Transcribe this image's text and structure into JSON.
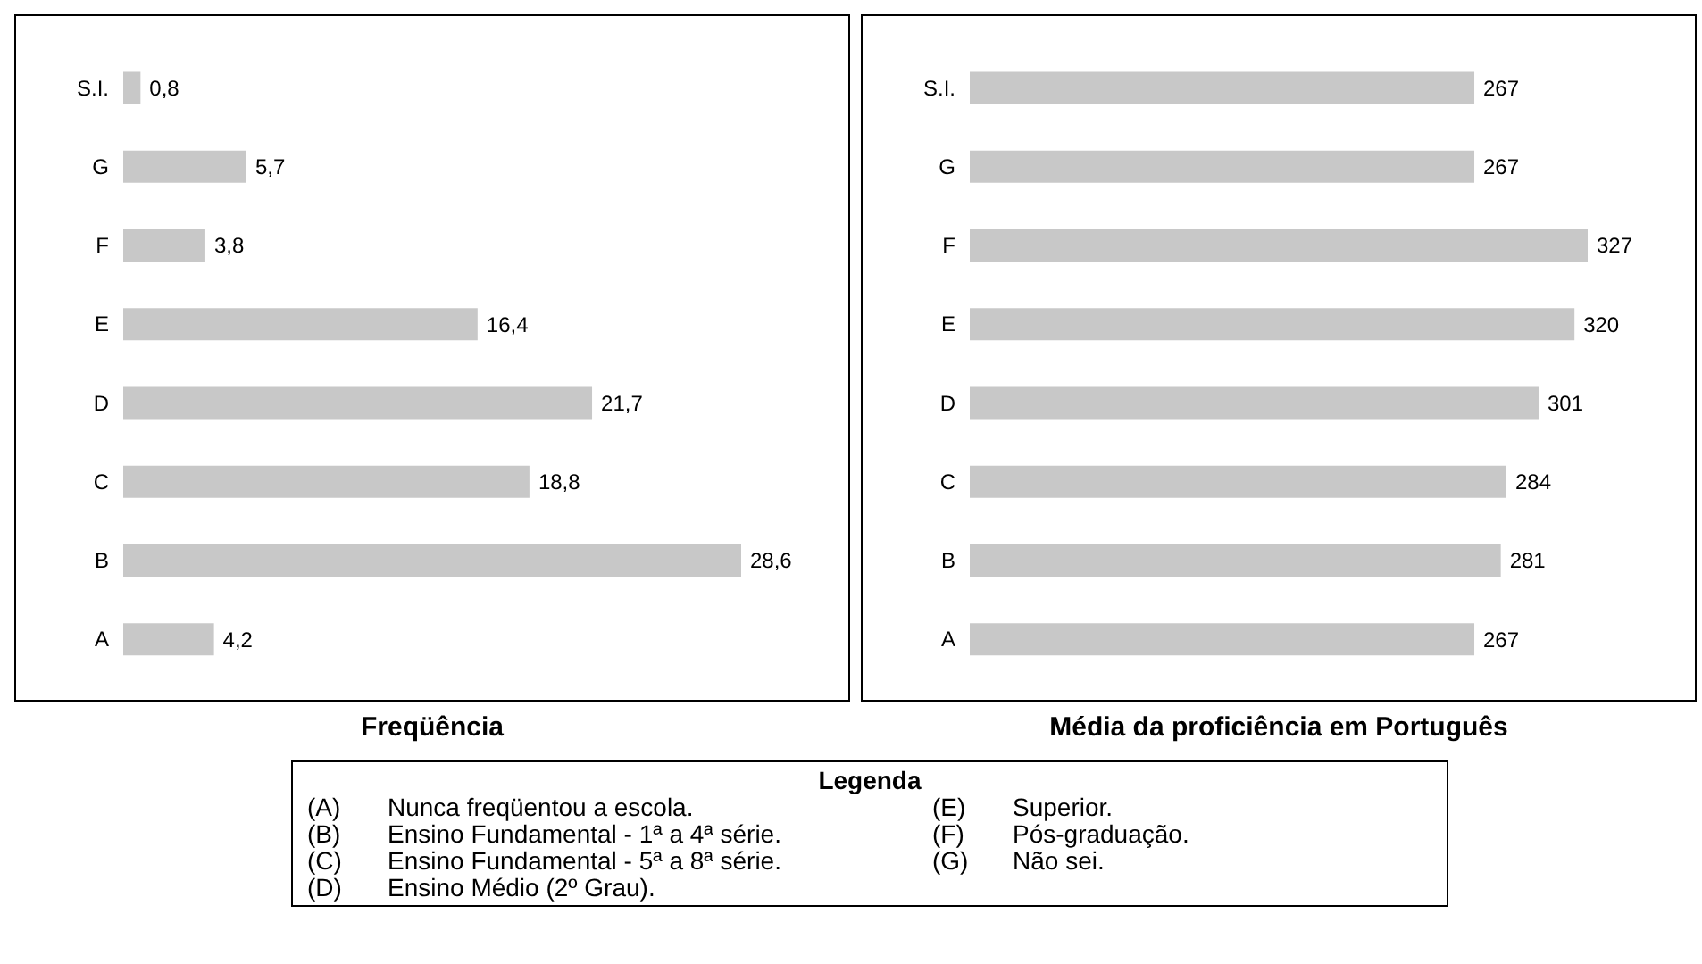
{
  "chart_data": [
    {
      "type": "bar",
      "orientation": "horizontal",
      "title": "Freqüência",
      "categories": [
        "S.I.",
        "G",
        "F",
        "E",
        "D",
        "C",
        "B",
        "A"
      ],
      "values": [
        0.8,
        5.7,
        3.8,
        16.4,
        21.7,
        18.8,
        28.6,
        4.2
      ],
      "value_labels": [
        "0,8",
        "5,7",
        "3,8",
        "16,4",
        "21,7",
        "18,8",
        "28,6",
        "4,2"
      ],
      "color": "#c8c8c8"
    },
    {
      "type": "bar",
      "orientation": "horizontal",
      "title": "Média da proficiência em Português",
      "categories": [
        "S.I.",
        "G",
        "F",
        "E",
        "D",
        "C",
        "B",
        "A"
      ],
      "values": [
        267,
        267,
        327,
        320,
        301,
        284,
        281,
        267
      ],
      "data_labels": true,
      "color": "#c8c8c8"
    },
    {
      "type": "other",
      "title": "Legenda",
      "annotations": [
        "(A) Nunca freqüentou a escola.",
        "(B) Ensino Fundamental - 1ª a 4ª série.",
        "(C) Ensino Fundamental - 5ª a 8ª série.",
        "(D) Ensino Médio (2º Grau).",
        "(E) Superior.",
        "(F) Pós-graduação.",
        "(G) Não sei."
      ]
    }
  ]
}
